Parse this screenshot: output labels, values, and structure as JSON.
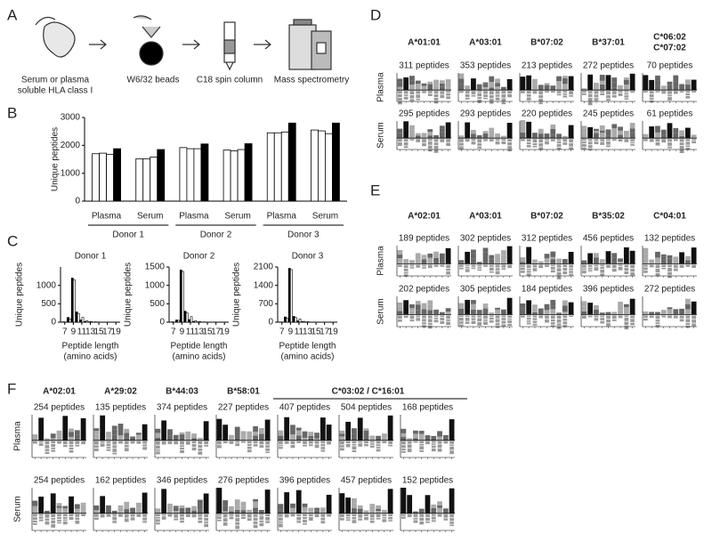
{
  "panel_labels": [
    "A",
    "B",
    "C",
    "D",
    "E",
    "F"
  ],
  "workflow": {
    "steps": [
      [
        "Serum or plasma",
        "soluble HLA class I"
      ],
      [
        "W6/32 beads"
      ],
      [
        "C18 spin column"
      ],
      [
        "Mass spectrometry"
      ]
    ]
  },
  "chart_data": [
    {
      "type": "bar",
      "ylabel": "Unique peptides",
      "categories": [
        "Plasma",
        "Serum",
        "Plasma",
        "Serum",
        "Plasma",
        "Serum"
      ],
      "groups": [
        "Donor 1",
        "Donor 2",
        "Donor 3"
      ],
      "series": [
        {
          "color": "#ffffff",
          "values": [
            1700,
            1520,
            1920,
            1830,
            2450,
            2550
          ]
        },
        {
          "color": "#ffffff",
          "values": [
            1720,
            1520,
            1880,
            1800,
            2450,
            2520
          ]
        },
        {
          "color": "#ffffff",
          "values": [
            1680,
            1580,
            1880,
            1850,
            2480,
            2420
          ]
        },
        {
          "color": "#000000",
          "values": [
            1880,
            1850,
            2050,
            2060,
            2800,
            2800
          ]
        }
      ],
      "ylim": [
        0,
        3000
      ],
      "yticks": [
        0,
        1000,
        2000,
        3000
      ]
    },
    {
      "type": "bar",
      "title": "Donor 1",
      "ylabel": "Unique peptides",
      "xlabel": [
        "Peptide length",
        "(amino acids)"
      ],
      "x": [
        7,
        8,
        9,
        10,
        11,
        12,
        13,
        14,
        15,
        16,
        17,
        18,
        19
      ],
      "series": [
        {
          "color": "#000000",
          "values": [
            10,
            130,
            1200,
            280,
            60,
            20,
            10,
            5,
            3,
            2,
            1,
            1,
            0
          ]
        },
        {
          "color": "#ffffff",
          "values": [
            5,
            90,
            1150,
            240,
            130,
            40,
            20,
            10,
            5,
            3,
            2,
            1,
            0
          ]
        }
      ],
      "xlim": [
        6,
        20
      ],
      "xticks": [
        7,
        9,
        11,
        13,
        15,
        17,
        19
      ],
      "ylim": [
        0,
        1500
      ],
      "yticks": [
        0,
        500,
        1000
      ]
    },
    {
      "type": "bar",
      "title": "Donor 2",
      "ylabel": "Unique peptides",
      "xlabel": [
        "Peptide length",
        "(amino acids)"
      ],
      "x": [
        7,
        8,
        9,
        10,
        11,
        12,
        13,
        14,
        15,
        16,
        17,
        18,
        19
      ],
      "series": [
        {
          "color": "#000000",
          "values": [
            10,
            60,
            1420,
            300,
            70,
            20,
            10,
            5,
            3,
            2,
            1,
            1,
            0
          ]
        },
        {
          "color": "#ffffff",
          "values": [
            5,
            50,
            1380,
            250,
            150,
            40,
            20,
            8,
            4,
            2,
            1,
            0,
            0
          ]
        }
      ],
      "xlim": [
        6,
        20
      ],
      "xticks": [
        7,
        9,
        11,
        13,
        15,
        17,
        19
      ],
      "ylim": [
        0,
        1500
      ],
      "yticks": [
        0,
        500,
        1000,
        1500
      ]
    },
    {
      "type": "bar",
      "title": "Donor 3",
      "ylabel": "Unique peptides",
      "xlabel": [
        "Peptide length",
        "(amino acids)"
      ],
      "x": [
        7,
        8,
        9,
        10,
        11,
        12,
        13,
        14,
        15,
        16,
        17,
        18,
        19
      ],
      "series": [
        {
          "color": "#000000",
          "values": [
            10,
            200,
            2050,
            220,
            50,
            20,
            10,
            5,
            3,
            2,
            1,
            0,
            0
          ]
        },
        {
          "color": "#ffffff",
          "values": [
            5,
            150,
            2000,
            180,
            120,
            30,
            15,
            6,
            3,
            2,
            1,
            0,
            0
          ]
        }
      ],
      "xlim": [
        6,
        20
      ],
      "xticks": [
        7,
        9,
        11,
        13,
        15,
        17,
        19
      ],
      "ylim": [
        0,
        2100
      ],
      "yticks": [
        0,
        700,
        1400,
        2100
      ]
    }
  ],
  "logos": [
    {
      "alleles": [
        [
          "A*01:01"
        ],
        [
          "A*03:01"
        ],
        [
          "B*07:02"
        ],
        [
          "B*37:01"
        ],
        [
          "C*06:02",
          "C*07:02"
        ]
      ],
      "rows": [
        {
          "label": "Plasma",
          "counts": [
            "311 peptides",
            "353 peptides",
            "213 peptides",
            "272 peptides",
            "70 peptides"
          ]
        },
        {
          "label": "Serum",
          "counts": [
            "295 peptides",
            "293 peptides",
            "220 peptides",
            "245 peptides",
            "61 peptides"
          ]
        }
      ]
    },
    {
      "alleles": [
        [
          "A*02:01"
        ],
        [
          "A*03:01"
        ],
        [
          "B*07:02"
        ],
        [
          "B*35:02"
        ],
        [
          "C*04:01"
        ]
      ],
      "rows": [
        {
          "label": "Plasma",
          "counts": [
            "189 peptides",
            "302 peptides",
            "312 peptides",
            "456 peptides",
            "132 peptides"
          ]
        },
        {
          "label": "Serum",
          "counts": [
            "202 peptides",
            "305 peptides",
            "184 peptides",
            "396 peptides",
            "272 peptides"
          ]
        }
      ]
    },
    {
      "alleles": [
        [
          "A*02:01"
        ],
        [
          "A*29:02"
        ],
        [
          "B*44:03"
        ],
        [
          "B*58:01"
        ]
      ],
      "group_label": "C*03:02 / C*16:01",
      "rows": [
        {
          "label": "Plasma",
          "counts": [
            "254 peptides",
            "135 peptides",
            "374 peptides",
            "227 peptides",
            "407 peptides",
            "504 peptides",
            "168 peptides"
          ]
        },
        {
          "label": "Serum",
          "counts": [
            "254 peptides",
            "162 peptides",
            "346 peptides",
            "276 peptides",
            "396 peptides",
            "457 peptides",
            "152 peptides"
          ]
        }
      ]
    }
  ]
}
